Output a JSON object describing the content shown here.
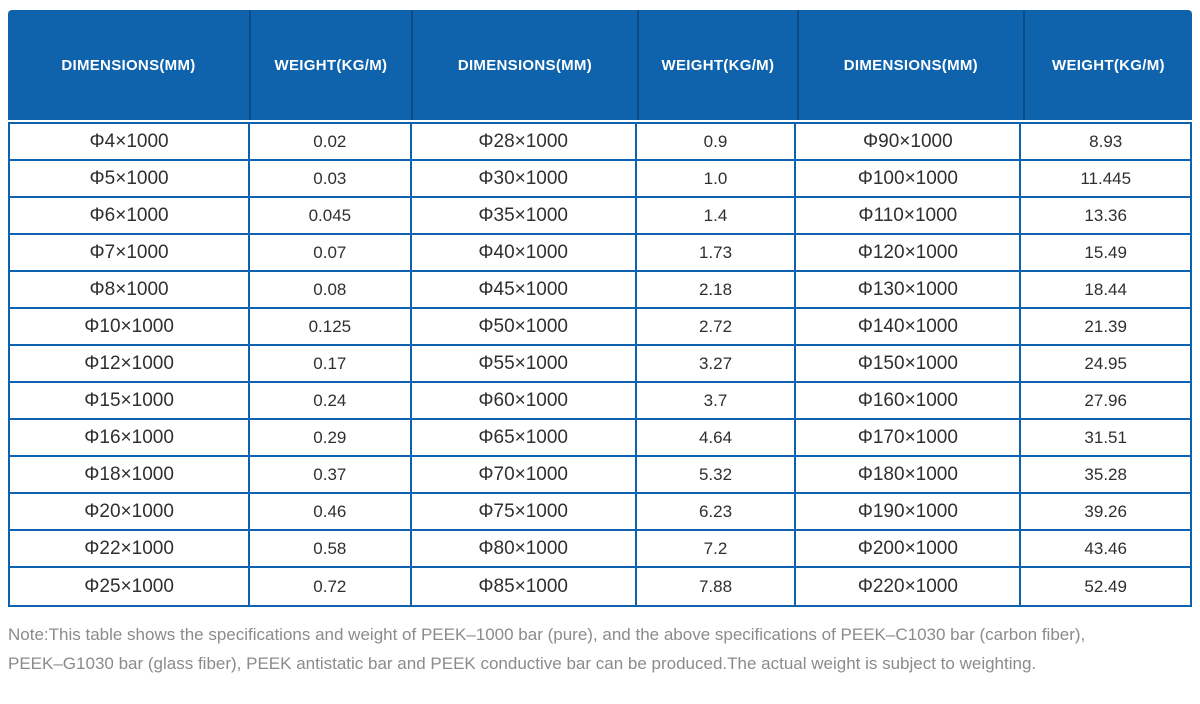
{
  "table": {
    "columns": [
      "DIMENSIONS(MM)",
      "WEIGHT(KG/M)",
      "DIMENSIONS(MM)",
      "WEIGHT(KG/M)",
      "DIMENSIONS(MM)",
      "WEIGHT(KG/M)"
    ],
    "rows": [
      [
        "Φ4×1000",
        "0.02",
        "Φ28×1000",
        "0.9",
        "Φ90×1000",
        "8.93"
      ],
      [
        "Φ5×1000",
        "0.03",
        "Φ30×1000",
        "1.0",
        "Φ100×1000",
        "11.445"
      ],
      [
        "Φ6×1000",
        "0.045",
        "Φ35×1000",
        "1.4",
        "Φ110×1000",
        "13.36"
      ],
      [
        "Φ7×1000",
        "0.07",
        "Φ40×1000",
        "1.73",
        "Φ120×1000",
        "15.49"
      ],
      [
        "Φ8×1000",
        "0.08",
        "Φ45×1000",
        "2.18",
        "Φ130×1000",
        "18.44"
      ],
      [
        "Φ10×1000",
        "0.125",
        "Φ50×1000",
        "2.72",
        "Φ140×1000",
        "21.39"
      ],
      [
        "Φ12×1000",
        "0.17",
        "Φ55×1000",
        "3.27",
        "Φ150×1000",
        "24.95"
      ],
      [
        "Φ15×1000",
        "0.24",
        "Φ60×1000",
        "3.7",
        "Φ160×1000",
        "27.96"
      ],
      [
        "Φ16×1000",
        "0.29",
        "Φ65×1000",
        "4.64",
        "Φ170×1000",
        "31.51"
      ],
      [
        "Φ18×1000",
        "0.37",
        "Φ70×1000",
        "5.32",
        "Φ180×1000",
        "35.28"
      ],
      [
        "Φ20×1000",
        "0.46",
        "Φ75×1000",
        "6.23",
        "Φ190×1000",
        "39.26"
      ],
      [
        "Φ22×1000",
        "0.58",
        "Φ80×1000",
        "7.2",
        "Φ200×1000",
        "43.46"
      ],
      [
        "Φ25×1000",
        "0.72",
        "Φ85×1000",
        "7.88",
        "Φ220×1000",
        "52.49"
      ]
    ]
  },
  "note": {
    "line1": "Note:This table shows the specifications and weight of PEEK–1000 bar (pure), and the above specifications of PEEK–C1030 bar (carbon fiber),",
    "line2": "PEEK–G1030 bar (glass fiber), PEEK antistatic bar and PEEK conductive bar can be produced.The actual weight is subject to weighting."
  },
  "colors": {
    "header_bg": "#0e63ac",
    "header_separator": "#0a4c86",
    "grid_border": "#0d62b0",
    "cell_text": "#2f2f2f",
    "note_text": "#8b8b8b"
  }
}
